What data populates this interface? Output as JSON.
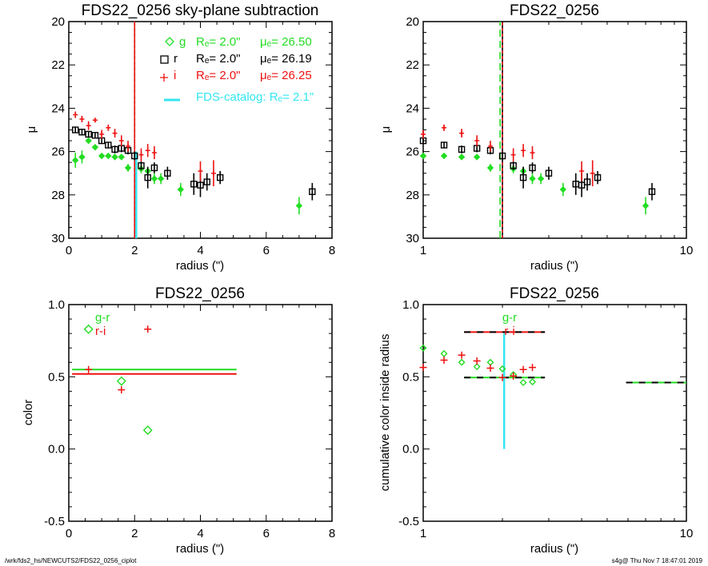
{
  "footer": {
    "left": "/wrk/fds2_hs/NEWCUTS2/FDS22_0256_ciplot",
    "right": "s4g@  Thu Nov  7 18:47:01 2019"
  },
  "colors": {
    "g": "#22dd22",
    "r": "#000000",
    "i": "#ee1111",
    "catalog": "#33e6f0"
  },
  "chart_data": [
    {
      "id": "profile-linear",
      "type": "scatter",
      "title": "FDS22_0256 sky-plane subtraction",
      "xlabel": "radius (\")",
      "ylabel": "μ",
      "xscale": "linear",
      "xlim": [
        0,
        8
      ],
      "ylim": [
        30,
        20
      ],
      "xticks": [
        0,
        2,
        4,
        6,
        8
      ],
      "yticks": [
        20,
        22,
        24,
        26,
        28,
        30
      ],
      "xticklabels": [
        "0",
        "2",
        "4",
        "6",
        "8"
      ],
      "yticklabels": [
        "20",
        "22",
        "24",
        "26",
        "28",
        "30"
      ],
      "legend": [
        {
          "band": "g",
          "symbol": "diamond",
          "label": "g",
          "re": "Rₑ=   2.0\"",
          "mue": "μₑ= 26.50"
        },
        {
          "band": "r",
          "symbol": "square",
          "label": "r",
          "re": "Rₑ=   2.0\"",
          "mue": "μₑ= 26.19"
        },
        {
          "band": "i",
          "symbol": "plus",
          "label": "i",
          "re": "Rₑ=   2.0\"",
          "mue": "μₑ= 26.25"
        },
        {
          "band": "catalog",
          "symbol": "line",
          "label": "FDS-catalog: Rₑ=   2.1\""
        }
      ],
      "vlines": [
        {
          "x": 2.0,
          "color": "g",
          "style": "dashed",
          "ymin": 20,
          "ymax": 30
        },
        {
          "x": 2.0,
          "color": "r",
          "style": "dashed",
          "ymin": 20,
          "ymax": 30
        },
        {
          "x": 2.0,
          "color": "i",
          "style": "solid",
          "ymin": 20,
          "ymax": 30
        },
        {
          "x": 2.05,
          "color": "catalog",
          "style": "solid",
          "ymin": 26,
          "ymax": 30
        }
      ],
      "series": [
        {
          "name": "g",
          "symbol": "diamond-filled",
          "points": [
            [
              0.2,
              26.4,
              0.35
            ],
            [
              0.4,
              26.25,
              0.3
            ],
            [
              0.6,
              25.5,
              0.12
            ],
            [
              0.8,
              25.8,
              0.12
            ],
            [
              1.0,
              26.2,
              0.12
            ],
            [
              1.2,
              26.2,
              0.12
            ],
            [
              1.4,
              26.25,
              0.12
            ],
            [
              1.6,
              26.25,
              0.12
            ],
            [
              1.8,
              26.75,
              0.18
            ],
            [
              2.2,
              26.8,
              0.2
            ],
            [
              2.4,
              26.9,
              0.2
            ],
            [
              2.6,
              27.25,
              0.25
            ],
            [
              2.8,
              27.25,
              0.25
            ],
            [
              3.4,
              27.75,
              0.3
            ],
            [
              7.0,
              28.5,
              0.4
            ]
          ]
        },
        {
          "name": "r",
          "symbol": "square",
          "points": [
            [
              0.2,
              25.0,
              0.15
            ],
            [
              0.4,
              25.1,
              0.15
            ],
            [
              0.6,
              25.2,
              0.15
            ],
            [
              0.8,
              25.25,
              0.1
            ],
            [
              1.0,
              25.5,
              0.15
            ],
            [
              1.2,
              25.7,
              0.15
            ],
            [
              1.4,
              25.9,
              0.18
            ],
            [
              1.6,
              25.85,
              0.18
            ],
            [
              1.8,
              25.95,
              0.18
            ],
            [
              2.0,
              26.2,
              0.2
            ],
            [
              2.2,
              26.65,
              0.2
            ],
            [
              2.4,
              27.2,
              0.5
            ],
            [
              2.6,
              26.75,
              0.25
            ],
            [
              3.0,
              27.0,
              0.3
            ],
            [
              3.8,
              27.5,
              0.5
            ],
            [
              4.0,
              27.55,
              0.55
            ],
            [
              4.2,
              27.4,
              0.4
            ],
            [
              4.6,
              27.2,
              0.3
            ],
            [
              7.4,
              27.85,
              0.4
            ]
          ]
        },
        {
          "name": "i",
          "symbol": "plus",
          "points": [
            [
              0.2,
              24.3,
              0.15
            ],
            [
              0.4,
              24.5,
              0.15
            ],
            [
              0.6,
              24.8,
              0.2
            ],
            [
              0.8,
              24.55,
              0.1
            ],
            [
              1.0,
              25.2,
              0.2
            ],
            [
              1.2,
              24.9,
              0.15
            ],
            [
              1.4,
              25.15,
              0.2
            ],
            [
              1.6,
              25.5,
              0.25
            ],
            [
              1.8,
              25.75,
              0.25
            ],
            [
              2.2,
              26.15,
              0.3
            ],
            [
              2.4,
              25.95,
              0.3
            ],
            [
              2.6,
              26.05,
              0.3
            ],
            [
              4.0,
              26.9,
              0.45
            ],
            [
              4.4,
              27.0,
              0.6
            ]
          ]
        }
      ]
    },
    {
      "id": "profile-log",
      "type": "scatter",
      "title": "FDS22_0256",
      "xlabel": "radius (\")",
      "ylabel": "μ",
      "xscale": "log",
      "xlim": [
        1,
        10
      ],
      "ylim": [
        30,
        20
      ],
      "xticks": [
        1,
        10
      ],
      "xticklabels": [
        "1",
        "10"
      ],
      "yticks": [
        20,
        22,
        24,
        26,
        28,
        30
      ],
      "yticklabels": [
        "20",
        "22",
        "24",
        "26",
        "28",
        "30"
      ],
      "vlines": [
        {
          "x": 1.96,
          "color": "g",
          "style": "dashed",
          "ymin": 20,
          "ymax": 30
        },
        {
          "x": 2.0,
          "color": "r",
          "style": "solid",
          "ymin": 20,
          "ymax": 30
        },
        {
          "x": 2.0,
          "color": "i",
          "style": "dashed",
          "ymin": 20,
          "ymax": 30
        }
      ],
      "series_ref": "profile-linear"
    },
    {
      "id": "color-profile",
      "type": "scatter",
      "title": "FDS22_0256",
      "xlabel": "radius (\")",
      "ylabel": "color",
      "xscale": "linear",
      "xlim": [
        0,
        8
      ],
      "ylim": [
        -0.5,
        1.0
      ],
      "xticks": [
        0,
        2,
        4,
        6,
        8
      ],
      "xticklabels": [
        "0",
        "2",
        "4",
        "6",
        "8"
      ],
      "yticks": [
        -0.5,
        0.0,
        0.5,
        1.0
      ],
      "yticklabels": [
        "-0.5",
        "0.0",
        "0.5",
        "1.0"
      ],
      "legend": [
        {
          "label": "g-r",
          "color": "g"
        },
        {
          "label": "r-i",
          "color": "i"
        }
      ],
      "hlines": [
        {
          "y": 0.55,
          "xmin": 0.1,
          "xmax": 5.1,
          "color": "g"
        },
        {
          "y": 0.52,
          "xmin": 0.1,
          "xmax": 5.1,
          "color": "i"
        }
      ],
      "series": [
        {
          "name": "g-r",
          "color": "g",
          "symbol": "diamond",
          "points": [
            [
              0.6,
              0.83
            ],
            [
              1.6,
              0.47
            ],
            [
              2.4,
              0.13
            ]
          ]
        },
        {
          "name": "r-i",
          "color": "i",
          "symbol": "plus",
          "points": [
            [
              0.6,
              0.55
            ],
            [
              1.6,
              0.41
            ],
            [
              2.4,
              0.83
            ]
          ]
        }
      ]
    },
    {
      "id": "cumulative-color",
      "type": "scatter",
      "title": "FDS22_0256",
      "xlabel": "radius (\")",
      "ylabel": "cumulative color inside radius",
      "xscale": "log",
      "xlim": [
        1,
        10
      ],
      "ylim": [
        -0.5,
        1.0
      ],
      "xticks": [
        1,
        10
      ],
      "xticklabels": [
        "1",
        "10"
      ],
      "yticks": [
        -0.5,
        0.0,
        0.5,
        1.0
      ],
      "yticklabels": [
        "-0.5",
        "0.0",
        "0.5",
        "1.0"
      ],
      "legend": [
        {
          "label": "g-r",
          "color": "g"
        },
        {
          "label": "r-i",
          "color": "i"
        }
      ],
      "hlines": [
        {
          "y": 0.81,
          "xmin": 1.43,
          "xmax": 2.9,
          "color": "i",
          "dashed_with": "r"
        },
        {
          "y": 0.495,
          "xmin": 1.43,
          "xmax": 2.9,
          "color": "g",
          "dashed_with": "r"
        },
        {
          "y": 0.46,
          "xmin": 5.9,
          "xmax": 10,
          "color": "g",
          "dashed_with": "r"
        }
      ],
      "vlines": [
        {
          "x": 2.03,
          "color": "catalog",
          "style": "solid",
          "ymin": 0.0,
          "ymax": 0.8
        }
      ],
      "series": [
        {
          "name": "g-r",
          "color": "g",
          "symbol": "diamond",
          "points": [
            [
              1.0,
              0.7
            ],
            [
              1.2,
              0.66
            ],
            [
              1.4,
              0.6
            ],
            [
              1.6,
              0.57
            ],
            [
              1.8,
              0.6
            ],
            [
              2.0,
              0.555
            ],
            [
              2.2,
              0.515
            ],
            [
              2.4,
              0.46
            ],
            [
              2.6,
              0.465
            ]
          ]
        },
        {
          "name": "r-i",
          "color": "i",
          "symbol": "plus",
          "points": [
            [
              1.0,
              0.565
            ],
            [
              1.2,
              0.615
            ],
            [
              1.4,
              0.65
            ],
            [
              1.6,
              0.61
            ],
            [
              1.8,
              0.56
            ],
            [
              2.0,
              0.495
            ],
            [
              2.2,
              0.505
            ],
            [
              2.4,
              0.55
            ],
            [
              2.6,
              0.565
            ]
          ]
        }
      ]
    }
  ]
}
